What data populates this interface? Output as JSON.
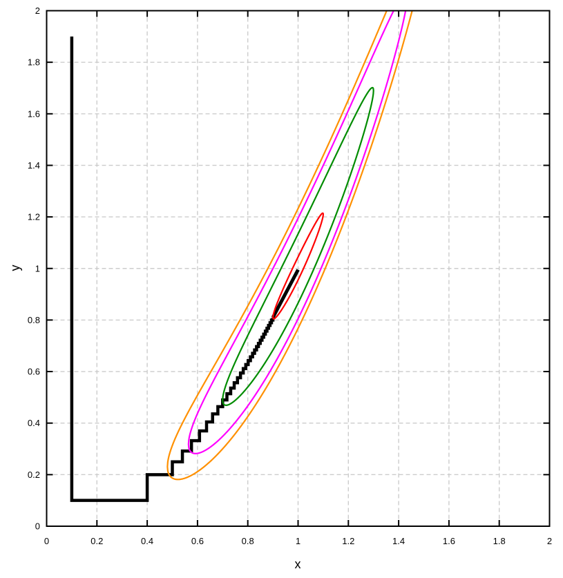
{
  "chart_data": {
    "type": "contour",
    "title": "",
    "xlabel": "x",
    "ylabel": "y",
    "xlim": [
      0,
      2
    ],
    "ylim": [
      0,
      2
    ],
    "x_tick_values": [
      0,
      0.2,
      0.4,
      0.6,
      0.8,
      1,
      1.2,
      1.4,
      1.6,
      1.8,
      2
    ],
    "x_tick_labels": [
      "0",
      "0.2",
      "0.4",
      "0.6",
      "0.8",
      "1",
      "1.2",
      "1.4",
      "1.6",
      "1.8",
      "2"
    ],
    "y_tick_values": [
      0,
      0.2,
      0.4,
      0.6,
      0.8,
      1,
      1.2,
      1.4,
      1.6,
      1.8,
      2
    ],
    "y_tick_labels": [
      "0",
      "0.2",
      "0.4",
      "0.6",
      "0.8",
      "1",
      "1.2",
      "1.4",
      "1.6",
      "1.8",
      "2"
    ],
    "grid": {
      "show": true,
      "style": "dashed",
      "color": "#cccccc"
    },
    "border_color": "#000000",
    "contour_function": "f(x,y) = (1-x)^2 + 5*(y-x^2)^2",
    "contour_center": [
      1,
      1
    ],
    "contour_coefficient": 5,
    "contour_levels": [
      {
        "value": 0.27,
        "color": "#ff9000",
        "name": "orange-contour"
      },
      {
        "value": 0.19,
        "color": "#ff00ff",
        "name": "magenta-contour"
      },
      {
        "value": 0.09,
        "color": "#008c00",
        "name": "green-contour"
      },
      {
        "value": 0.01,
        "color": "#ff0000",
        "name": "red-contour"
      }
    ],
    "descent_path": {
      "color": "#000000",
      "start_point": [
        0.1,
        1.9
      ],
      "end_point": [
        1.0,
        0.995
      ],
      "initial_vertices": [
        [
          0.1,
          1.9
        ],
        [
          0.1,
          0.1
        ],
        [
          0.4,
          0.1
        ],
        [
          0.4,
          0.2
        ],
        [
          0.5,
          0.2
        ]
      ],
      "stair_start_x": 0.5,
      "stair_rule": "vertical to y=x^2 then horizontal by dx",
      "stair_dx": [
        0.04,
        0.036,
        0.032,
        0.028,
        0.024,
        0.021,
        0.019,
        0.017,
        0.015,
        0.014,
        0.013,
        0.012,
        0.011,
        0.01,
        0.0095,
        0.009,
        0.0085,
        0.008,
        0.0078,
        0.0075,
        0.0072,
        0.007,
        0.0068,
        0.0066,
        0.0064,
        0.0062,
        0.006,
        0.0058,
        0.0056
      ],
      "final_segment": [
        [
          0.9,
          0.81
        ],
        [
          1.0,
          0.995
        ]
      ]
    }
  }
}
